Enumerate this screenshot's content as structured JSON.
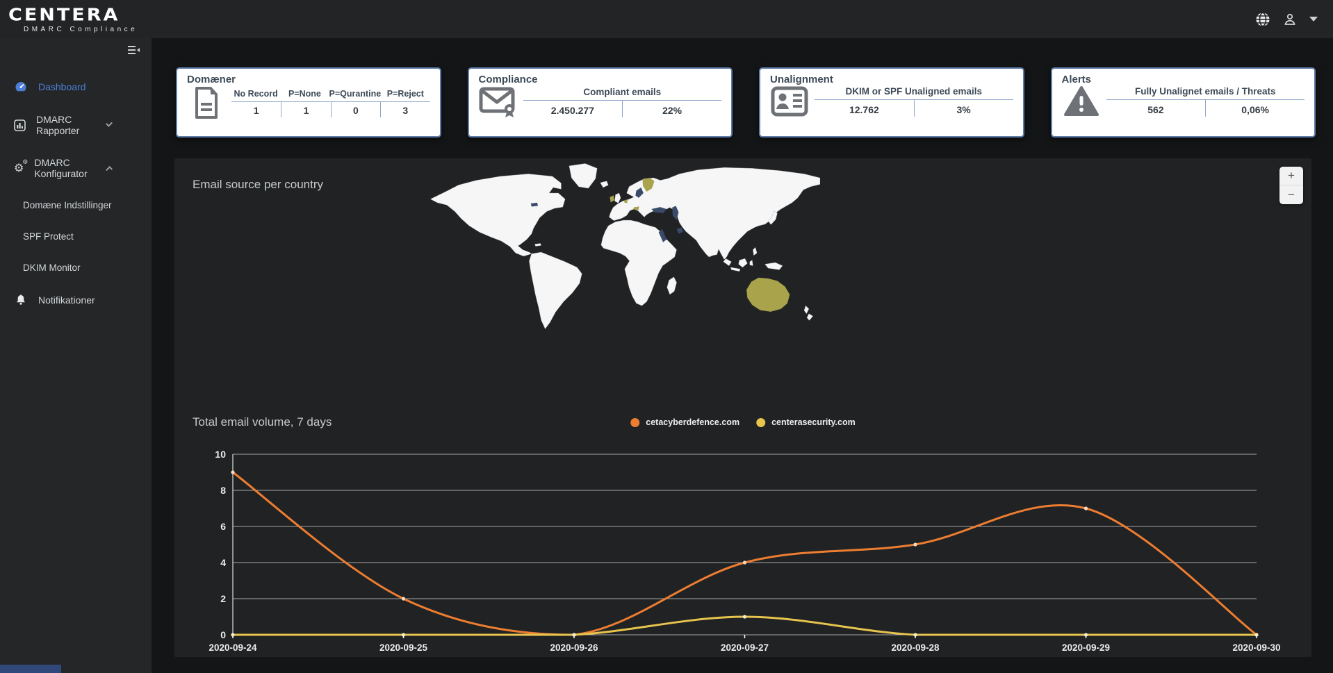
{
  "brand": {
    "name": "CENTERA",
    "tagline": "DMARC Compliance"
  },
  "topbar": {
    "icons": [
      "globe-icon",
      "user-icon",
      "caret-down-icon"
    ]
  },
  "sidebar": {
    "items": [
      {
        "label": "Dashboard",
        "icon": "gauge-icon",
        "active": true
      },
      {
        "label": "DMARC Rapporter",
        "icon": "bar-chart-icon",
        "chevron": "down"
      },
      {
        "label": "DMARC Konfigurator",
        "icon": "gears-icon",
        "chevron": "up"
      },
      {
        "label": "Domæne Indstillinger",
        "sub": true
      },
      {
        "label": "SPF Protect",
        "sub": true
      },
      {
        "label": "DKIM Monitor",
        "sub": true
      },
      {
        "label": "Notifikationer",
        "icon": "bell-icon"
      }
    ]
  },
  "cards": [
    {
      "title": "Domæner",
      "icon": "document-icon",
      "columns": [
        {
          "label": "No Record",
          "value": "1"
        },
        {
          "label": "P=None",
          "value": "1"
        },
        {
          "label": "P=Qurantine",
          "value": "0"
        },
        {
          "label": "P=Reject",
          "value": "3"
        }
      ]
    },
    {
      "title": "Compliance",
      "icon": "certified-mail-icon",
      "header": "Compliant emails",
      "values": [
        "2.450.277",
        "22%"
      ]
    },
    {
      "title": "Unalignment",
      "icon": "id-card-icon",
      "header": "DKIM or SPF Unaligned emails",
      "values": [
        "12.762",
        "3%"
      ]
    },
    {
      "title": "Alerts",
      "icon": "warning-icon",
      "header": "Fully Unalignet emails / Threats",
      "values": [
        "562",
        "0,06%"
      ]
    }
  ],
  "map": {
    "title": "Email source per country",
    "zoom_in": "+",
    "zoom_out": "−",
    "land_color": "#f6f6f6",
    "land_border_color": "#a7abb0",
    "highlight_color": "#a9a44b",
    "sea_highlight_color": "#3a4b69",
    "highlighted_countries": [
      "Finland",
      "Ireland",
      "Netherlands",
      "Austria",
      "Australia"
    ]
  },
  "chart_data": {
    "type": "line",
    "title": "Total email volume, 7 days",
    "x": [
      "2020-09-24",
      "2020-09-25",
      "2020-09-26",
      "2020-09-27",
      "2020-09-28",
      "2020-09-29",
      "2020-09-30"
    ],
    "series": [
      {
        "name": "cetacyberdefence.com",
        "color": "#ed7d31",
        "values": [
          9,
          2,
          0,
          4,
          5,
          7,
          0
        ]
      },
      {
        "name": "centerasecurity.com",
        "color": "#e6c44e",
        "values": [
          0,
          0,
          0,
          1,
          0,
          0,
          0
        ]
      }
    ],
    "ylim": [
      0,
      10
    ],
    "ytick_step": 2,
    "grid": true,
    "legend_position": "top-center"
  },
  "colors": {
    "accent_blue": "#4d7fd6",
    "card_border": "#5f7dab"
  }
}
